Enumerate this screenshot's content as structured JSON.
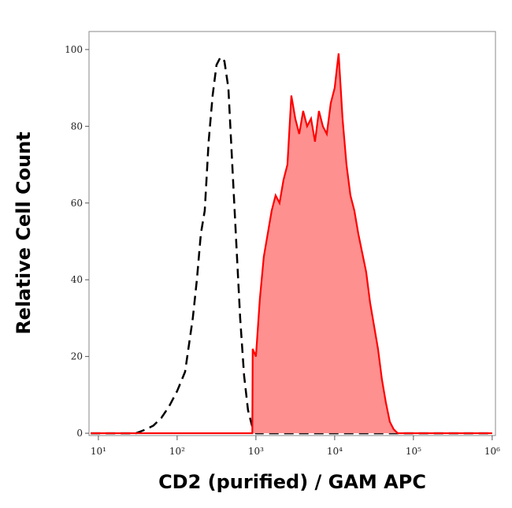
{
  "chart_data": {
    "type": "histogram-overlay",
    "x_label": "CD2 (purified)  / GAM APC",
    "y_label": "Relative Cell Count",
    "xscale": "log",
    "xlim": [
      7.6,
      1100000
    ],
    "ylim": [
      -0.6,
      104.7
    ],
    "xticks": [
      {
        "value": 10,
        "label": "10¹"
      },
      {
        "value": 100,
        "label": "10²"
      },
      {
        "value": 1000,
        "label": "10³"
      },
      {
        "value": 10000,
        "label": "10⁴"
      },
      {
        "value": 100000,
        "label": "10⁵"
      },
      {
        "value": 1000000,
        "label": "10⁶"
      }
    ],
    "yticks": [
      0,
      20,
      40,
      60,
      80,
      100
    ],
    "series": [
      {
        "style": "dashed",
        "color": "#000000",
        "x": [
          8,
          30,
          40,
          50,
          63,
          79,
          100,
          126,
          158,
          178,
          200,
          224,
          251,
          282,
          316,
          355,
          398,
          447,
          501,
          562,
          631,
          708,
          794,
          891,
          1000,
          1000000
        ],
        "values": [
          0,
          0,
          1,
          2,
          4,
          7,
          11,
          16,
          30,
          40,
          52,
          58,
          76,
          88,
          96,
          98,
          97,
          90,
          70,
          50,
          30,
          15,
          6,
          2,
          0,
          0
        ]
      },
      {
        "style": "filled",
        "color": "#ff0000",
        "fill": "#ff9090",
        "x": [
          8,
          900,
          910,
          1000,
          1122,
          1259,
          1413,
          1585,
          1778,
          1995,
          2239,
          2512,
          2818,
          3162,
          3548,
          3981,
          4467,
          5012,
          5623,
          6310,
          7079,
          7943,
          8913,
          10000,
          11220,
          12589,
          14125,
          15849,
          17783,
          19953,
          22387,
          25119,
          28184,
          31623,
          35481,
          39811,
          44668,
          50119,
          56234,
          63096,
          1000000
        ],
        "values": [
          0,
          0,
          22,
          20,
          35,
          46,
          52,
          58,
          62,
          60,
          66,
          70,
          88,
          82,
          78,
          84,
          80,
          82,
          76,
          84,
          80,
          78,
          86,
          90,
          99,
          82,
          70,
          62,
          58,
          52,
          47,
          42,
          34,
          28,
          22,
          14,
          8,
          3,
          1,
          0,
          0
        ]
      }
    ]
  }
}
